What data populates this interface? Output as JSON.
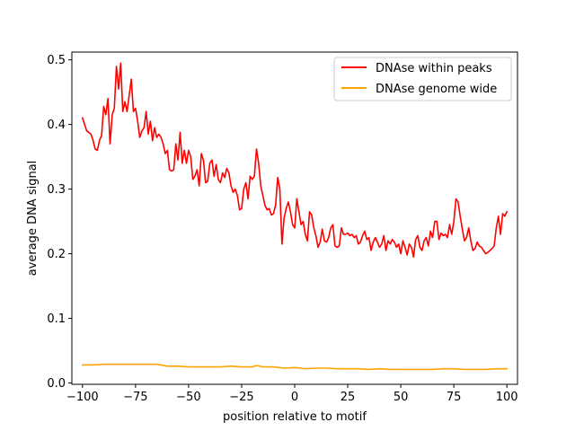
{
  "chart_data": {
    "type": "line",
    "title": "",
    "xlabel": "position relative to motif",
    "ylabel": "average DNA signal",
    "xlim": [
      -105,
      105
    ],
    "ylim": [
      -0.002,
      0.512
    ],
    "x_ticks": [
      -100,
      -75,
      -50,
      -25,
      0,
      25,
      50,
      75,
      100
    ],
    "x_tick_labels": [
      "−100",
      "−75",
      "−50",
      "−25",
      "0",
      "25",
      "50",
      "75",
      "100"
    ],
    "y_ticks": [
      0.0,
      0.1,
      0.2,
      0.3,
      0.4,
      0.5
    ],
    "y_tick_labels": [
      "0.0",
      "0.1",
      "0.2",
      "0.3",
      "0.4",
      "0.5"
    ],
    "grid": false,
    "legend_position": "top-right",
    "series": [
      {
        "name": "DNAse within peaks",
        "color": "#ff0000",
        "points": [
          [
            -100,
            0.41
          ],
          [
            -98,
            0.39
          ],
          [
            -96,
            0.385
          ],
          [
            -95,
            0.375
          ],
          [
            -94,
            0.362
          ],
          [
            -93,
            0.36
          ],
          [
            -92,
            0.375
          ],
          [
            -91,
            0.383
          ],
          [
            -90,
            0.428
          ],
          [
            -89,
            0.415
          ],
          [
            -88,
            0.44
          ],
          [
            -87,
            0.37
          ],
          [
            -86,
            0.415
          ],
          [
            -85,
            0.425
          ],
          [
            -84,
            0.49
          ],
          [
            -83,
            0.455
          ],
          [
            -82,
            0.495
          ],
          [
            -81,
            0.42
          ],
          [
            -80,
            0.435
          ],
          [
            -79,
            0.42
          ],
          [
            -78,
            0.445
          ],
          [
            -77,
            0.47
          ],
          [
            -76,
            0.42
          ],
          [
            -75,
            0.425
          ],
          [
            -74,
            0.405
          ],
          [
            -73,
            0.38
          ],
          [
            -72,
            0.39
          ],
          [
            -71,
            0.395
          ],
          [
            -70,
            0.42
          ],
          [
            -69,
            0.385
          ],
          [
            -68,
            0.405
          ],
          [
            -67,
            0.375
          ],
          [
            -66,
            0.395
          ],
          [
            -65,
            0.38
          ],
          [
            -64,
            0.385
          ],
          [
            -63,
            0.38
          ],
          [
            -62,
            0.37
          ],
          [
            -61,
            0.355
          ],
          [
            -60,
            0.36
          ],
          [
            -59,
            0.33
          ],
          [
            -58,
            0.328
          ],
          [
            -57,
            0.33
          ],
          [
            -56,
            0.37
          ],
          [
            -55,
            0.345
          ],
          [
            -54,
            0.388
          ],
          [
            -53,
            0.34
          ],
          [
            -52,
            0.36
          ],
          [
            -51,
            0.34
          ],
          [
            -50,
            0.36
          ],
          [
            -49,
            0.35
          ],
          [
            -48,
            0.315
          ],
          [
            -47,
            0.32
          ],
          [
            -46,
            0.33
          ],
          [
            -45,
            0.305
          ],
          [
            -44,
            0.355
          ],
          [
            -43,
            0.345
          ],
          [
            -42,
            0.31
          ],
          [
            -41,
            0.312
          ],
          [
            -40,
            0.34
          ],
          [
            -39,
            0.345
          ],
          [
            -38,
            0.32
          ],
          [
            -37,
            0.338
          ],
          [
            -36,
            0.315
          ],
          [
            -35,
            0.31
          ],
          [
            -34,
            0.325
          ],
          [
            -33,
            0.318
          ],
          [
            -32,
            0.332
          ],
          [
            -31,
            0.325
          ],
          [
            -30,
            0.305
          ],
          [
            -29,
            0.295
          ],
          [
            -28,
            0.3
          ],
          [
            -27,
            0.29
          ],
          [
            -26,
            0.268
          ],
          [
            -25,
            0.27
          ],
          [
            -24,
            0.3
          ],
          [
            -23,
            0.31
          ],
          [
            -22,
            0.285
          ],
          [
            -21,
            0.32
          ],
          [
            -20,
            0.315
          ],
          [
            -19,
            0.32
          ],
          [
            -18,
            0.362
          ],
          [
            -17,
            0.34
          ],
          [
            -16,
            0.305
          ],
          [
            -15,
            0.29
          ],
          [
            -14,
            0.275
          ],
          [
            -13,
            0.268
          ],
          [
            -12,
            0.27
          ],
          [
            -11,
            0.26
          ],
          [
            -10,
            0.262
          ],
          [
            -9,
            0.275
          ],
          [
            -8,
            0.318
          ],
          [
            -7,
            0.3
          ],
          [
            -6,
            0.215
          ],
          [
            -5,
            0.255
          ],
          [
            -4,
            0.27
          ],
          [
            -3,
            0.28
          ],
          [
            -2,
            0.265
          ],
          [
            -1,
            0.245
          ],
          [
            0,
            0.24
          ],
          [
            1,
            0.285
          ],
          [
            2,
            0.265
          ],
          [
            3,
            0.245
          ],
          [
            4,
            0.25
          ],
          [
            5,
            0.23
          ],
          [
            6,
            0.22
          ],
          [
            7,
            0.265
          ],
          [
            8,
            0.26
          ],
          [
            9,
            0.24
          ],
          [
            10,
            0.228
          ],
          [
            11,
            0.21
          ],
          [
            12,
            0.218
          ],
          [
            13,
            0.238
          ],
          [
            14,
            0.22
          ],
          [
            15,
            0.218
          ],
          [
            16,
            0.225
          ],
          [
            17,
            0.24
          ],
          [
            18,
            0.245
          ],
          [
            19,
            0.212
          ],
          [
            20,
            0.21
          ],
          [
            21,
            0.212
          ],
          [
            22,
            0.24
          ],
          [
            23,
            0.23
          ],
          [
            24,
            0.23
          ],
          [
            25,
            0.232
          ],
          [
            26,
            0.228
          ],
          [
            27,
            0.23
          ],
          [
            28,
            0.225
          ],
          [
            29,
            0.228
          ],
          [
            30,
            0.215
          ],
          [
            31,
            0.218
          ],
          [
            32,
            0.228
          ],
          [
            33,
            0.235
          ],
          [
            34,
            0.222
          ],
          [
            35,
            0.225
          ],
          [
            36,
            0.205
          ],
          [
            37,
            0.218
          ],
          [
            38,
            0.225
          ],
          [
            39,
            0.218
          ],
          [
            40,
            0.21
          ],
          [
            41,
            0.215
          ],
          [
            42,
            0.228
          ],
          [
            43,
            0.205
          ],
          [
            44,
            0.22
          ],
          [
            45,
            0.215
          ],
          [
            46,
            0.222
          ],
          [
            47,
            0.218
          ],
          [
            48,
            0.21
          ],
          [
            49,
            0.215
          ],
          [
            50,
            0.2
          ],
          [
            51,
            0.22
          ],
          [
            52,
            0.21
          ],
          [
            53,
            0.198
          ],
          [
            54,
            0.215
          ],
          [
            55,
            0.21
          ],
          [
            56,
            0.195
          ],
          [
            57,
            0.222
          ],
          [
            58,
            0.228
          ],
          [
            59,
            0.21
          ],
          [
            60,
            0.205
          ],
          [
            61,
            0.22
          ],
          [
            62,
            0.225
          ],
          [
            63,
            0.212
          ],
          [
            64,
            0.235
          ],
          [
            65,
            0.225
          ],
          [
            66,
            0.25
          ],
          [
            67,
            0.25
          ],
          [
            68,
            0.222
          ],
          [
            69,
            0.232
          ],
          [
            70,
            0.228
          ],
          [
            71,
            0.23
          ],
          [
            72,
            0.225
          ],
          [
            73,
            0.245
          ],
          [
            74,
            0.23
          ],
          [
            75,
            0.25
          ],
          [
            76,
            0.285
          ],
          [
            77,
            0.28
          ],
          [
            78,
            0.258
          ],
          [
            79,
            0.238
          ],
          [
            80,
            0.22
          ],
          [
            81,
            0.225
          ],
          [
            82,
            0.24
          ],
          [
            83,
            0.22
          ],
          [
            84,
            0.205
          ],
          [
            85,
            0.208
          ],
          [
            86,
            0.218
          ],
          [
            87,
            0.212
          ],
          [
            88,
            0.21
          ],
          [
            89,
            0.205
          ],
          [
            90,
            0.2
          ],
          [
            91,
            0.202
          ],
          [
            92,
            0.205
          ],
          [
            93,
            0.208
          ],
          [
            94,
            0.212
          ],
          [
            95,
            0.24
          ],
          [
            96,
            0.258
          ],
          [
            97,
            0.23
          ],
          [
            98,
            0.262
          ],
          [
            99,
            0.258
          ],
          [
            100,
            0.265
          ]
        ]
      },
      {
        "name": "DNAse genome wide",
        "color": "#ffa500",
        "points": [
          [
            -100,
            0.028
          ],
          [
            -95,
            0.028
          ],
          [
            -90,
            0.029
          ],
          [
            -85,
            0.029
          ],
          [
            -80,
            0.029
          ],
          [
            -75,
            0.029
          ],
          [
            -70,
            0.029
          ],
          [
            -65,
            0.029
          ],
          [
            -60,
            0.026
          ],
          [
            -55,
            0.026
          ],
          [
            -50,
            0.025
          ],
          [
            -45,
            0.025
          ],
          [
            -40,
            0.025
          ],
          [
            -35,
            0.025
          ],
          [
            -30,
            0.026
          ],
          [
            -25,
            0.025
          ],
          [
            -20,
            0.025
          ],
          [
            -18,
            0.027
          ],
          [
            -15,
            0.025
          ],
          [
            -10,
            0.025
          ],
          [
            -5,
            0.023
          ],
          [
            0,
            0.024
          ],
          [
            5,
            0.022
          ],
          [
            10,
            0.023
          ],
          [
            15,
            0.023
          ],
          [
            20,
            0.022
          ],
          [
            25,
            0.022
          ],
          [
            30,
            0.022
          ],
          [
            35,
            0.021
          ],
          [
            40,
            0.022
          ],
          [
            45,
            0.021
          ],
          [
            50,
            0.021
          ],
          [
            55,
            0.021
          ],
          [
            60,
            0.021
          ],
          [
            65,
            0.021
          ],
          [
            70,
            0.022
          ],
          [
            75,
            0.022
          ],
          [
            80,
            0.021
          ],
          [
            85,
            0.021
          ],
          [
            90,
            0.021
          ],
          [
            95,
            0.022
          ],
          [
            100,
            0.022
          ]
        ]
      }
    ]
  }
}
